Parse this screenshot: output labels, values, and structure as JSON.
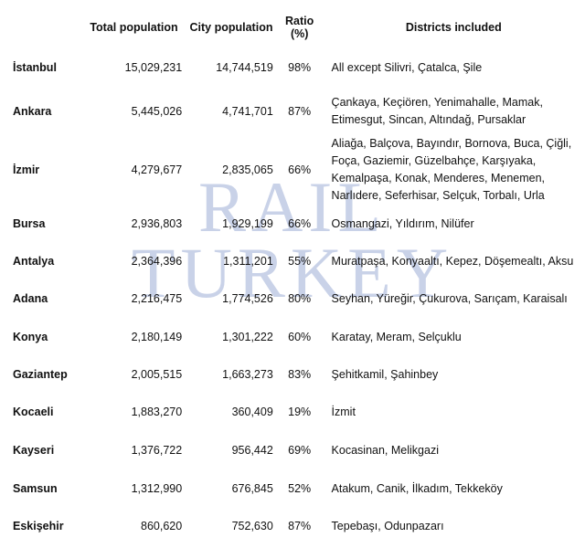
{
  "watermark": {
    "line1": "RAIL",
    "line2": "TURKEY"
  },
  "headers": {
    "city": "",
    "total": "Total population",
    "city_pop": "City population",
    "ratio": "Ratio (%)",
    "districts": "Districts included"
  },
  "rows": [
    {
      "city": "İstanbul",
      "total": "15,029,231",
      "city_pop": "14,744,519",
      "ratio": "98%",
      "districts": "All except Silivri, Çatalca, Şile"
    },
    {
      "city": "Ankara",
      "total": "5,445,026",
      "city_pop": "4,741,701",
      "ratio": "87%",
      "districts": "Çankaya, Keçiören, Yenimahalle, Mamak, Etimesgut, Sincan, Altındağ, Pursaklar"
    },
    {
      "city": "İzmir",
      "total": "4,279,677",
      "city_pop": "2,835,065",
      "ratio": "66%",
      "districts": "Aliağa, Balçova, Bayındır, Bornova, Buca, Çiğli, Foça, Gaziemir, Güzelbahçe, Karşıyaka, Kemalpaşa, Konak, Menderes, Menemen, Narlıdere, Seferhisar, Selçuk, Torbalı, Urla"
    },
    {
      "city": "Bursa",
      "total": "2,936,803",
      "city_pop": "1,929,199",
      "ratio": "66%",
      "districts": "Osmangazi, Yıldırım, Nilüfer"
    },
    {
      "city": "Antalya",
      "total": "2,364,396",
      "city_pop": "1,311,201",
      "ratio": "55%",
      "districts": "Muratpaşa, Konyaaltı, Kepez, Döşemealtı, Aksu"
    },
    {
      "city": "Adana",
      "total": "2,216,475",
      "city_pop": "1,774,526",
      "ratio": "80%",
      "districts": "Seyhan, Yüreğir, Çukurova, Sarıçam, Karaisalı"
    },
    {
      "city": "Konya",
      "total": "2,180,149",
      "city_pop": "1,301,222",
      "ratio": "60%",
      "districts": "Karatay, Meram, Selçuklu"
    },
    {
      "city": "Gaziantep",
      "total": "2,005,515",
      "city_pop": "1,663,273",
      "ratio": "83%",
      "districts": "Şehitkamil, Şahinbey"
    },
    {
      "city": "Kocaeli",
      "total": "1,883,270",
      "city_pop": "360,409",
      "ratio": "19%",
      "districts": "İzmit"
    },
    {
      "city": "Kayseri",
      "total": "1,376,722",
      "city_pop": "956,442",
      "ratio": "69%",
      "districts": "Kocasinan, Melikgazi"
    },
    {
      "city": "Samsun",
      "total": "1,312,990",
      "city_pop": "676,845",
      "ratio": "52%",
      "districts": "Atakum, Canik, İlkadım, Tekkeköy"
    },
    {
      "city": "Eskişehir",
      "total": "860,620",
      "city_pop": "752,630",
      "ratio": "87%",
      "districts": "Tepebaşı, Odunpazarı"
    }
  ]
}
